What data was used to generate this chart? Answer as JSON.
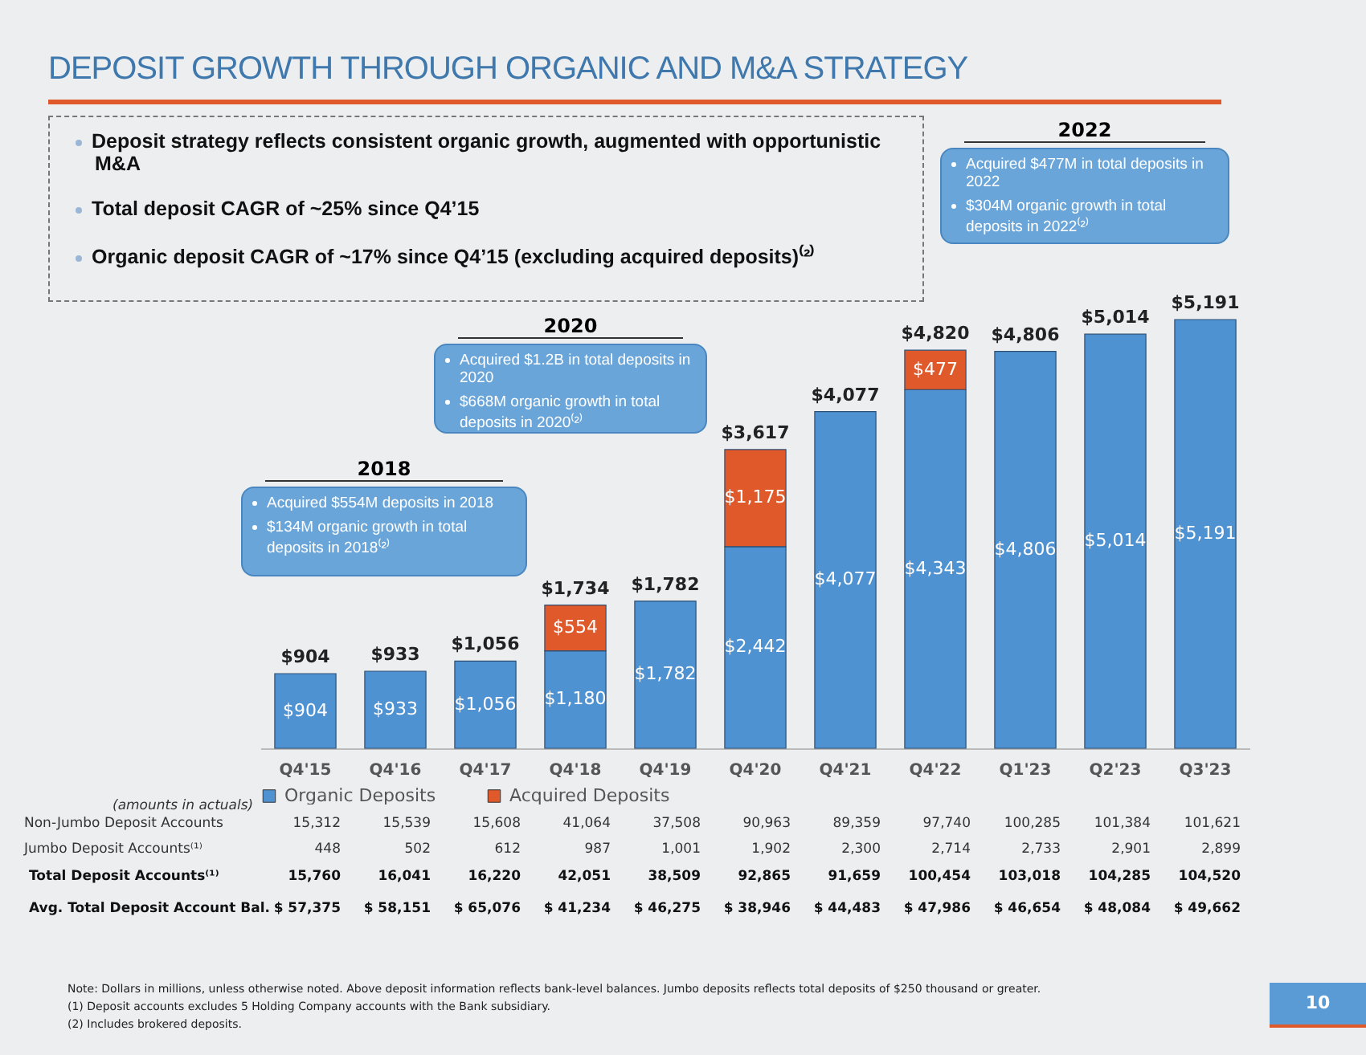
{
  "chart_data": {
    "type": "bar",
    "title": "DEPOSIT GROWTH THROUGH ORGANIC AND M&A STRATEGY",
    "stacked": true,
    "legend": "bottom",
    "tick_labels": "x",
    "categories": [
      "Q4'15",
      "Q4'16",
      "Q4'17",
      "Q4'18",
      "Q4'19",
      "Q4'20",
      "Q4'21",
      "Q4'22",
      "Q1'23",
      "Q2'23",
      "Q3'23"
    ],
    "series": [
      {
        "name": "Organic Deposits",
        "color": "#4f92d2",
        "values": [
          904,
          933,
          1056,
          1180,
          1782,
          2442,
          4077,
          4343,
          4806,
          5014,
          5191
        ],
        "value_labels": [
          "$904",
          "$933",
          "$1,056",
          "$1,180",
          "$1,782",
          "$2,442",
          "$4,077",
          "$4,343",
          "$4,806",
          "$5,014",
          "$5,191"
        ]
      },
      {
        "name": "Acquired Deposits",
        "color": "#e0592a",
        "values": [
          null,
          null,
          null,
          554,
          null,
          1175,
          null,
          477,
          null,
          null,
          null
        ],
        "value_labels": [
          null,
          null,
          null,
          "$554",
          null,
          "$1,175",
          null,
          "$477",
          null,
          null,
          null
        ]
      }
    ],
    "totals": [
      "$904",
      "$933",
      "$1,056",
      "$1,734",
      "$1,782",
      "$3,617",
      "$4,077",
      "$4,820",
      "$4,806",
      "$5,014",
      "$5,191"
    ],
    "annotations": [
      "Deposit strategy reflects consistent organic growth, augmented with opportunistic M&A",
      "Total deposit CAGR of ~25% since Q4’15",
      "Organic deposit CAGR of ~17% since Q4’15 (excluding acquired deposits)⁽²⁾",
      "2018",
      "Acquired $554M deposits in 2018",
      "$134M organic growth in total deposits in 2018⁽²⁾",
      "2020",
      "Acquired $1.2B in total deposits in 2020",
      "$668M organic growth in total deposits in 2020⁽²⁾",
      "2022",
      "Acquired $477M in total deposits in 2022",
      "$304M organic growth in total deposits in 2022⁽²⁾",
      "(amounts in actuals)",
      "Non-Jumbo Deposit Accounts",
      "15,312",
      "15,539",
      "15,608",
      "41,064",
      "37,508",
      "90,963",
      "89,359",
      "97,740",
      "100,285",
      "101,384",
      "101,621",
      "Jumbo Deposit Accounts⁽¹⁾",
      "448",
      "502",
      "612",
      "987",
      "1,001",
      "1,902",
      "2,300",
      "2,714",
      "2,733",
      "2,901",
      "2,899",
      "Total Deposit Accounts⁽¹⁾",
      "15,760",
      "16,041",
      "16,220",
      "42,051",
      "38,509",
      "92,865",
      "91,659",
      "100,454",
      "103,018",
      "104,285",
      "104,520",
      "Avg. Total Deposit Account Bal.",
      "$ 57,375",
      "$ 58,151",
      "$ 65,076",
      "$ 41,234",
      "$ 46,275",
      "$ 38,946",
      "$ 44,483",
      "$ 47,986",
      "$ 46,654",
      "$ 48,084",
      "$ 49,662",
      "Note: Dollars in millions, unless otherwise noted. Above deposit information reflects bank-level balances. Jumbo deposits reflects total deposits of $250 thousand or greater.",
      "(1)   Deposit accounts excludes 5 Holding Company accounts with the Bank subsidiary.",
      "(2)   Includes brokered deposits.",
      "10"
    ]
  }
}
